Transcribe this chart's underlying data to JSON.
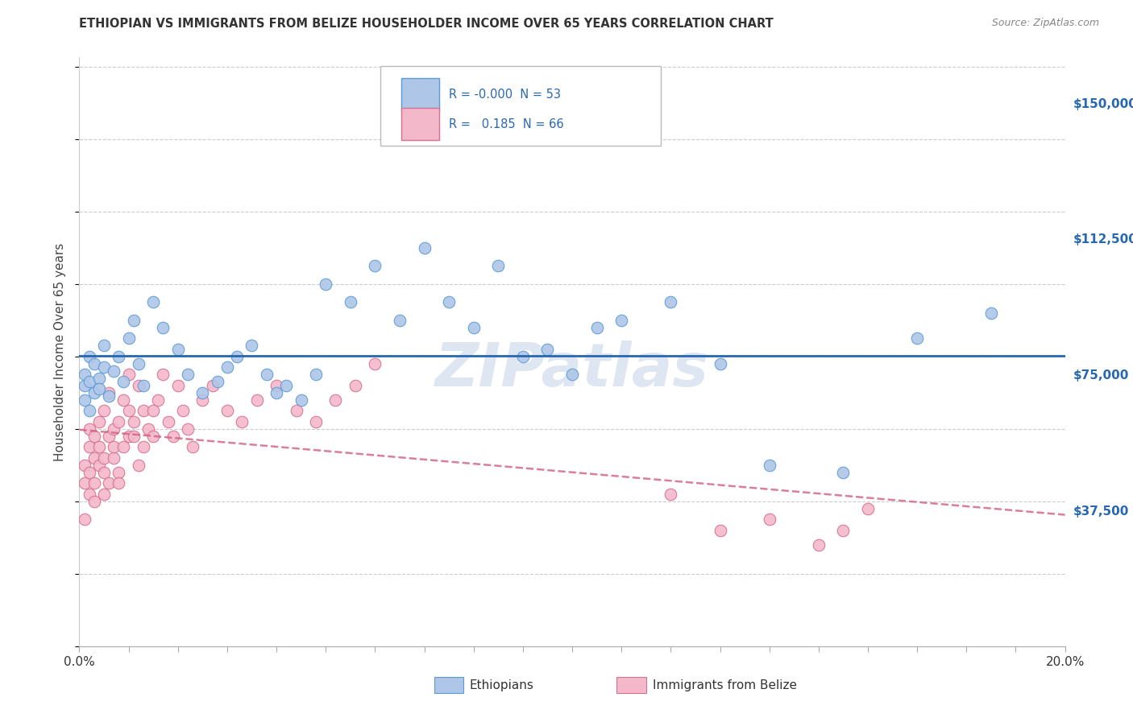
{
  "title": "ETHIOPIAN VS IMMIGRANTS FROM BELIZE HOUSEHOLDER INCOME OVER 65 YEARS CORRELATION CHART",
  "source": "Source: ZipAtlas.com",
  "ylabel": "Householder Income Over 65 years",
  "x_min": 0.0,
  "x_max": 0.2,
  "y_min": 0,
  "y_max": 162500,
  "x_tick_labels": [
    "0.0%",
    "",
    "",
    "",
    "",
    "",
    "",
    "",
    "",
    "",
    "",
    "",
    "",
    "",
    "",
    "",
    "",
    "",
    "",
    "",
    "20.0%"
  ],
  "x_ticks": [
    0.0,
    0.01,
    0.02,
    0.03,
    0.04,
    0.05,
    0.06,
    0.07,
    0.08,
    0.09,
    0.1,
    0.11,
    0.12,
    0.13,
    0.14,
    0.15,
    0.16,
    0.17,
    0.18,
    0.19,
    0.2
  ],
  "y_tick_labels": [
    "$37,500",
    "$75,000",
    "$112,500",
    "$150,000"
  ],
  "y_ticks": [
    37500,
    75000,
    112500,
    150000
  ],
  "r_ethiopian": -0.0,
  "n_ethiopian": 53,
  "r_belize": 0.185,
  "n_belize": 66,
  "ethiopian_color": "#aec6e8",
  "ethiopian_edge": "#5b9bd5",
  "belize_color": "#f4b8cb",
  "belize_edge": "#d47090",
  "trend_ethiopian_color": "#2868b0",
  "trend_belize_color": "#d06080",
  "watermark": "ZIPatlas",
  "watermark_color": "#c8d8e8",
  "background_color": "#ffffff",
  "grid_color": "#cccccc",
  "legend_label_ethiopians": "Ethiopians",
  "legend_label_belize": "Immigrants from Belize",
  "eth_x": [
    0.001,
    0.001,
    0.001,
    0.002,
    0.002,
    0.002,
    0.003,
    0.003,
    0.004,
    0.004,
    0.005,
    0.005,
    0.006,
    0.007,
    0.008,
    0.009,
    0.01,
    0.011,
    0.012,
    0.013,
    0.015,
    0.017,
    0.02,
    0.022,
    0.025,
    0.028,
    0.03,
    0.032,
    0.035,
    0.038,
    0.04,
    0.042,
    0.045,
    0.048,
    0.05,
    0.055,
    0.06,
    0.065,
    0.07,
    0.075,
    0.08,
    0.085,
    0.09,
    0.095,
    0.1,
    0.105,
    0.11,
    0.12,
    0.13,
    0.14,
    0.155,
    0.17,
    0.185
  ],
  "eth_y": [
    72000,
    68000,
    75000,
    80000,
    73000,
    65000,
    70000,
    78000,
    74000,
    71000,
    77000,
    83000,
    69000,
    76000,
    80000,
    73000,
    85000,
    90000,
    78000,
    72000,
    95000,
    88000,
    82000,
    75000,
    70000,
    73000,
    77000,
    80000,
    83000,
    75000,
    70000,
    72000,
    68000,
    75000,
    100000,
    95000,
    105000,
    90000,
    110000,
    95000,
    88000,
    105000,
    80000,
    82000,
    75000,
    88000,
    90000,
    95000,
    78000,
    50000,
    48000,
    85000,
    92000
  ],
  "bel_x": [
    0.001,
    0.001,
    0.001,
    0.002,
    0.002,
    0.002,
    0.002,
    0.003,
    0.003,
    0.003,
    0.003,
    0.004,
    0.004,
    0.004,
    0.005,
    0.005,
    0.005,
    0.005,
    0.006,
    0.006,
    0.006,
    0.007,
    0.007,
    0.007,
    0.008,
    0.008,
    0.008,
    0.009,
    0.009,
    0.01,
    0.01,
    0.01,
    0.011,
    0.011,
    0.012,
    0.012,
    0.013,
    0.013,
    0.014,
    0.015,
    0.015,
    0.016,
    0.017,
    0.018,
    0.019,
    0.02,
    0.021,
    0.022,
    0.023,
    0.025,
    0.027,
    0.03,
    0.033,
    0.036,
    0.04,
    0.044,
    0.048,
    0.052,
    0.056,
    0.06,
    0.12,
    0.13,
    0.14,
    0.15,
    0.155,
    0.16
  ],
  "bel_y": [
    45000,
    50000,
    35000,
    55000,
    48000,
    42000,
    60000,
    52000,
    45000,
    58000,
    40000,
    62000,
    50000,
    55000,
    48000,
    65000,
    52000,
    42000,
    58000,
    45000,
    70000,
    60000,
    52000,
    55000,
    48000,
    62000,
    45000,
    55000,
    68000,
    58000,
    65000,
    75000,
    62000,
    58000,
    50000,
    72000,
    65000,
    55000,
    60000,
    58000,
    65000,
    68000,
    75000,
    62000,
    58000,
    72000,
    65000,
    60000,
    55000,
    68000,
    72000,
    65000,
    62000,
    68000,
    72000,
    65000,
    62000,
    68000,
    72000,
    78000,
    42000,
    32000,
    35000,
    28000,
    32000,
    38000
  ]
}
